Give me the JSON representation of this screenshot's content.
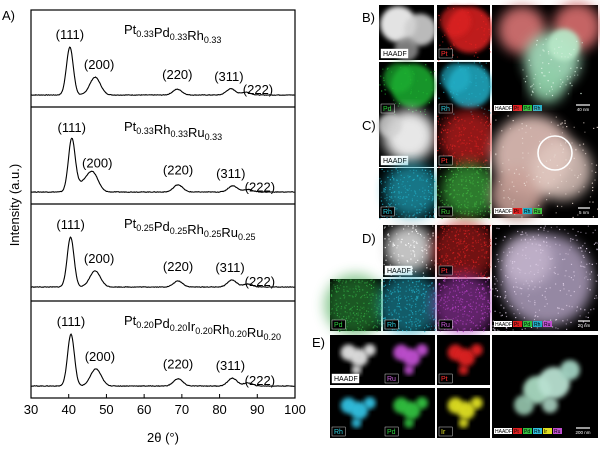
{
  "panels": {
    "A": {
      "label": "A)"
    },
    "B": {
      "label": "B)"
    },
    "C": {
      "label": "C)"
    },
    "D": {
      "label": "D)"
    },
    "E": {
      "label": "E)"
    }
  },
  "chart_data": {
    "type": "line",
    "xlabel": "2θ (°)",
    "ylabel": "Intensity (a.u.)",
    "xlim": [
      30,
      100
    ],
    "xticks": [
      "30",
      "40",
      "50",
      "60",
      "70",
      "80",
      "90",
      "100"
    ],
    "stacked_panels": [
      {
        "composition": [
          [
            "Pt",
            "0.33"
          ],
          [
            "Pd",
            "0.33"
          ],
          [
            "Rh",
            "0.33"
          ]
        ],
        "peaks": [
          {
            "hkl": "(111)",
            "x": 40.3,
            "height": 1.0
          },
          {
            "hkl": "(200)",
            "x": 47.0,
            "height": 0.37
          },
          {
            "hkl": "(220)",
            "x": 68.8,
            "height": 0.12
          },
          {
            "hkl": "(311)",
            "x": 83.0,
            "height": 0.13
          },
          {
            "hkl": "(222)",
            "x": 87.0,
            "height": 0.06
          }
        ]
      },
      {
        "composition": [
          [
            "Pt",
            "0.33"
          ],
          [
            "Rh",
            "0.33"
          ],
          [
            "Ru",
            "0.33"
          ]
        ],
        "peaks": [
          {
            "hkl": "(111)",
            "x": 40.8,
            "height": 1.0
          },
          {
            "hkl": "(200)",
            "x": 46.5,
            "height": 0.32
          },
          {
            "hkl": "(220)",
            "x": 69.0,
            "height": 0.14
          },
          {
            "hkl": "(311)",
            "x": 83.5,
            "height": 0.12
          },
          {
            "hkl": "(222)",
            "x": 87.5,
            "height": 0.05
          }
        ]
      },
      {
        "composition": [
          [
            "Pt",
            "0.25"
          ],
          [
            "Pd",
            "0.25"
          ],
          [
            "Rh",
            "0.25"
          ],
          [
            "Ru",
            "0.25"
          ]
        ],
        "peaks": [
          {
            "hkl": "(111)",
            "x": 40.5,
            "height": 1.0
          },
          {
            "hkl": "(200)",
            "x": 47.0,
            "height": 0.32
          },
          {
            "hkl": "(220)",
            "x": 69.0,
            "height": 0.12
          },
          {
            "hkl": "(311)",
            "x": 83.3,
            "height": 0.14
          },
          {
            "hkl": "(222)",
            "x": 87.5,
            "height": 0.06
          }
        ]
      },
      {
        "composition": [
          [
            "Pt",
            "0.20"
          ],
          [
            "Pd",
            "0.20"
          ],
          [
            "Ir",
            "0.20"
          ],
          [
            "Rh",
            "0.20"
          ],
          [
            "Ru",
            "0.20"
          ]
        ],
        "peaks": [
          {
            "hkl": "(111)",
            "x": 40.6,
            "height": 1.0
          },
          {
            "hkl": "(200)",
            "x": 47.2,
            "height": 0.33
          },
          {
            "hkl": "(220)",
            "x": 69.0,
            "height": 0.14
          },
          {
            "hkl": "(311)",
            "x": 83.4,
            "height": 0.15
          },
          {
            "hkl": "(222)",
            "x": 87.5,
            "height": 0.06
          }
        ]
      }
    ]
  },
  "maps": {
    "B": {
      "tiles": [
        {
          "label": "HAADF",
          "color": "#e8e8e8",
          "labelColor": "#000000"
        },
        {
          "label": "Pt",
          "color": "#e02020",
          "labelColor": "#ff3030"
        },
        {
          "label": "Pd",
          "color": "#1fb030",
          "labelColor": "#20d030"
        },
        {
          "label": "Rh",
          "color": "#20b0c8",
          "labelColor": "#30d0e0"
        }
      ],
      "overlay_legend": [
        "HAADF",
        "Pt",
        "Pd",
        "Rh"
      ],
      "scalebar": "40 nm"
    },
    "C": {
      "tiles": [
        {
          "label": "HAADF",
          "color": "#dcdcdc",
          "labelColor": "#000000"
        },
        {
          "label": "Pt",
          "color": "#d02020",
          "labelColor": "#ff3030"
        },
        {
          "label": "Rh",
          "color": "#20a8c0",
          "labelColor": "#30d0e0"
        },
        {
          "label": "Ru",
          "color": "#40b040",
          "labelColor": "#40d040"
        }
      ],
      "overlay_legend": [
        "HAADF",
        "Pt",
        "Rh",
        "Ru"
      ],
      "scalebar": "5 nm"
    },
    "D": {
      "tiles": [
        {
          "label": "HAADF",
          "color": "#d0d0d0",
          "labelColor": "#000000"
        },
        {
          "label": "Pt",
          "color": "#d02020",
          "labelColor": "#ff3030"
        },
        {
          "label": "Pd",
          "color": "#30a040",
          "labelColor": "#30d040"
        },
        {
          "label": "Rh",
          "color": "#20a8c0",
          "labelColor": "#30d0e0"
        },
        {
          "label": "Ru",
          "color": "#b040c0",
          "labelColor": "#d060e0"
        }
      ],
      "overlay_legend": [
        "HAADF",
        "Pt",
        "Pd",
        "Rh",
        "Ru"
      ],
      "scalebar": "20 nm"
    },
    "E": {
      "tiles": [
        {
          "label": "HAADF",
          "color": "#e0e0e0",
          "labelColor": "#000000"
        },
        {
          "label": "Ru",
          "color": "#c050d0",
          "labelColor": "#d060e0"
        },
        {
          "label": "Pt",
          "color": "#e02020",
          "labelColor": "#ff3030"
        },
        {
          "label": "Rh",
          "color": "#30c0e0",
          "labelColor": "#30d0e0"
        },
        {
          "label": "Pd",
          "color": "#30c040",
          "labelColor": "#30d040"
        },
        {
          "label": "Ir",
          "color": "#e0e020",
          "labelColor": "#f0f030"
        }
      ],
      "overlay_legend": [
        "HAADF",
        "Pt",
        "Pd",
        "Rh",
        "Ir",
        "Ru"
      ],
      "scalebar": "200 nm"
    }
  }
}
